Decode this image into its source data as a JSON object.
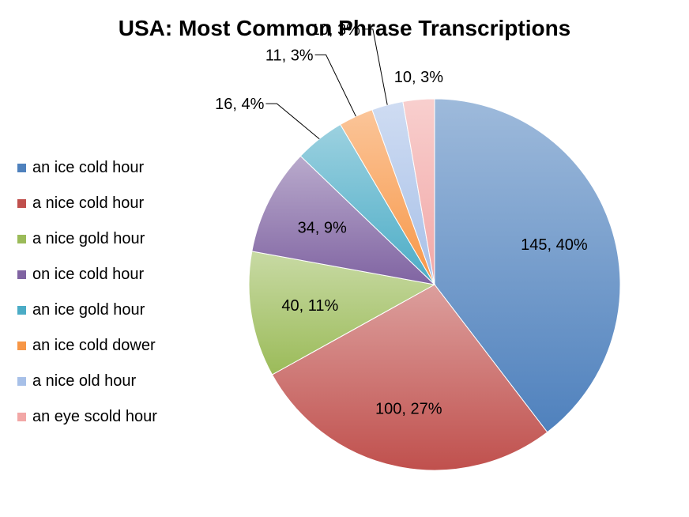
{
  "chart_data": {
    "type": "pie",
    "title": "USA: Most Common Phrase Transcriptions",
    "legend_position": "left",
    "slices": [
      {
        "name": "an ice cold hour",
        "value": 145,
        "label": "145, 40%",
        "color": "#4F81BD"
      },
      {
        "name": "a nice cold hour",
        "value": 100,
        "label": "100, 27%",
        "color": "#C0504D"
      },
      {
        "name": "a nice gold hour",
        "value": 40,
        "label": "40, 11%",
        "color": "#9BBB59"
      },
      {
        "name": "on ice cold hour",
        "value": 34,
        "label": "34, 9%",
        "color": "#8064A2"
      },
      {
        "name": "an ice gold hour",
        "value": 16,
        "label": "16, 4%",
        "color": "#4BACC6"
      },
      {
        "name": "an ice cold dower",
        "value": 11,
        "label": "11, 3%",
        "color": "#F79646"
      },
      {
        "name": "a nice old hour",
        "value": 10,
        "label": "10, 3%",
        "color": "#A7C0E8"
      },
      {
        "name": "an eye scold hour",
        "value": 10,
        "label": "10, 3%",
        "color": "#F2A7A6"
      }
    ]
  }
}
